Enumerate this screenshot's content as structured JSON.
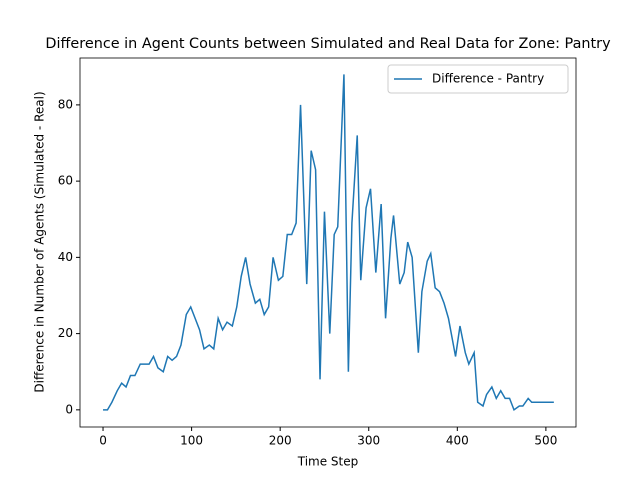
{
  "chart_data": {
    "type": "line",
    "title": "Difference in Agent Counts between Simulated and Real Data for Zone: Pantry",
    "xlabel": "Time Step",
    "ylabel": "Difference in Number of Agents (Simulated - Real)",
    "legend": "upper right",
    "x": [
      0,
      5,
      10,
      16,
      21,
      26,
      31,
      36,
      42,
      47,
      52,
      57,
      62,
      68,
      73,
      78,
      83,
      88,
      94,
      99,
      104,
      109,
      114,
      120,
      125,
      130,
      135,
      140,
      146,
      151,
      156,
      161,
      166,
      172,
      177,
      182,
      187,
      192,
      198,
      203,
      208,
      213,
      218,
      223,
      230,
      235,
      240,
      245,
      250,
      256,
      261,
      265,
      272,
      277,
      281,
      287,
      291,
      297,
      302,
      308,
      314,
      319,
      325,
      328,
      335,
      340,
      344,
      349,
      356,
      360,
      366,
      370,
      375,
      380,
      385,
      390,
      398,
      403,
      409,
      413,
      419,
      423,
      429,
      433,
      439,
      444,
      449,
      454,
      459,
      464,
      470,
      474,
      480,
      484,
      489,
      494,
      499,
      504,
      509
    ],
    "series": [
      {
        "name": "Difference - Pantry",
        "color": "#1f77b4",
        "values": [
          0,
          0,
          2,
          5,
          7,
          6,
          9,
          9,
          12,
          12,
          12,
          14,
          11,
          10,
          14,
          13,
          14,
          17,
          25,
          27,
          24,
          21,
          16,
          17,
          16,
          24,
          21,
          23,
          22,
          27,
          35,
          40,
          33,
          28,
          29,
          25,
          27,
          40,
          34,
          35,
          46,
          46,
          49,
          80,
          33,
          68,
          63,
          8,
          52,
          20,
          46,
          48,
          88,
          10,
          49,
          72,
          34,
          53,
          58,
          36,
          54,
          24,
          45,
          51,
          33,
          36,
          44,
          40,
          15,
          31,
          39,
          41,
          32,
          31,
          28,
          24,
          14,
          22,
          15,
          12,
          15,
          2,
          1,
          4,
          6,
          3,
          5,
          3,
          3,
          0,
          1,
          1,
          3,
          2,
          2,
          2,
          2,
          2,
          2
        ]
      }
    ],
    "xlim": [
      -26,
      534
    ],
    "ylim": [
      -4.5,
      92.3
    ],
    "xticks": [
      0,
      100,
      200,
      300,
      400,
      500
    ],
    "yticks": [
      0,
      20,
      40,
      60,
      80
    ]
  }
}
